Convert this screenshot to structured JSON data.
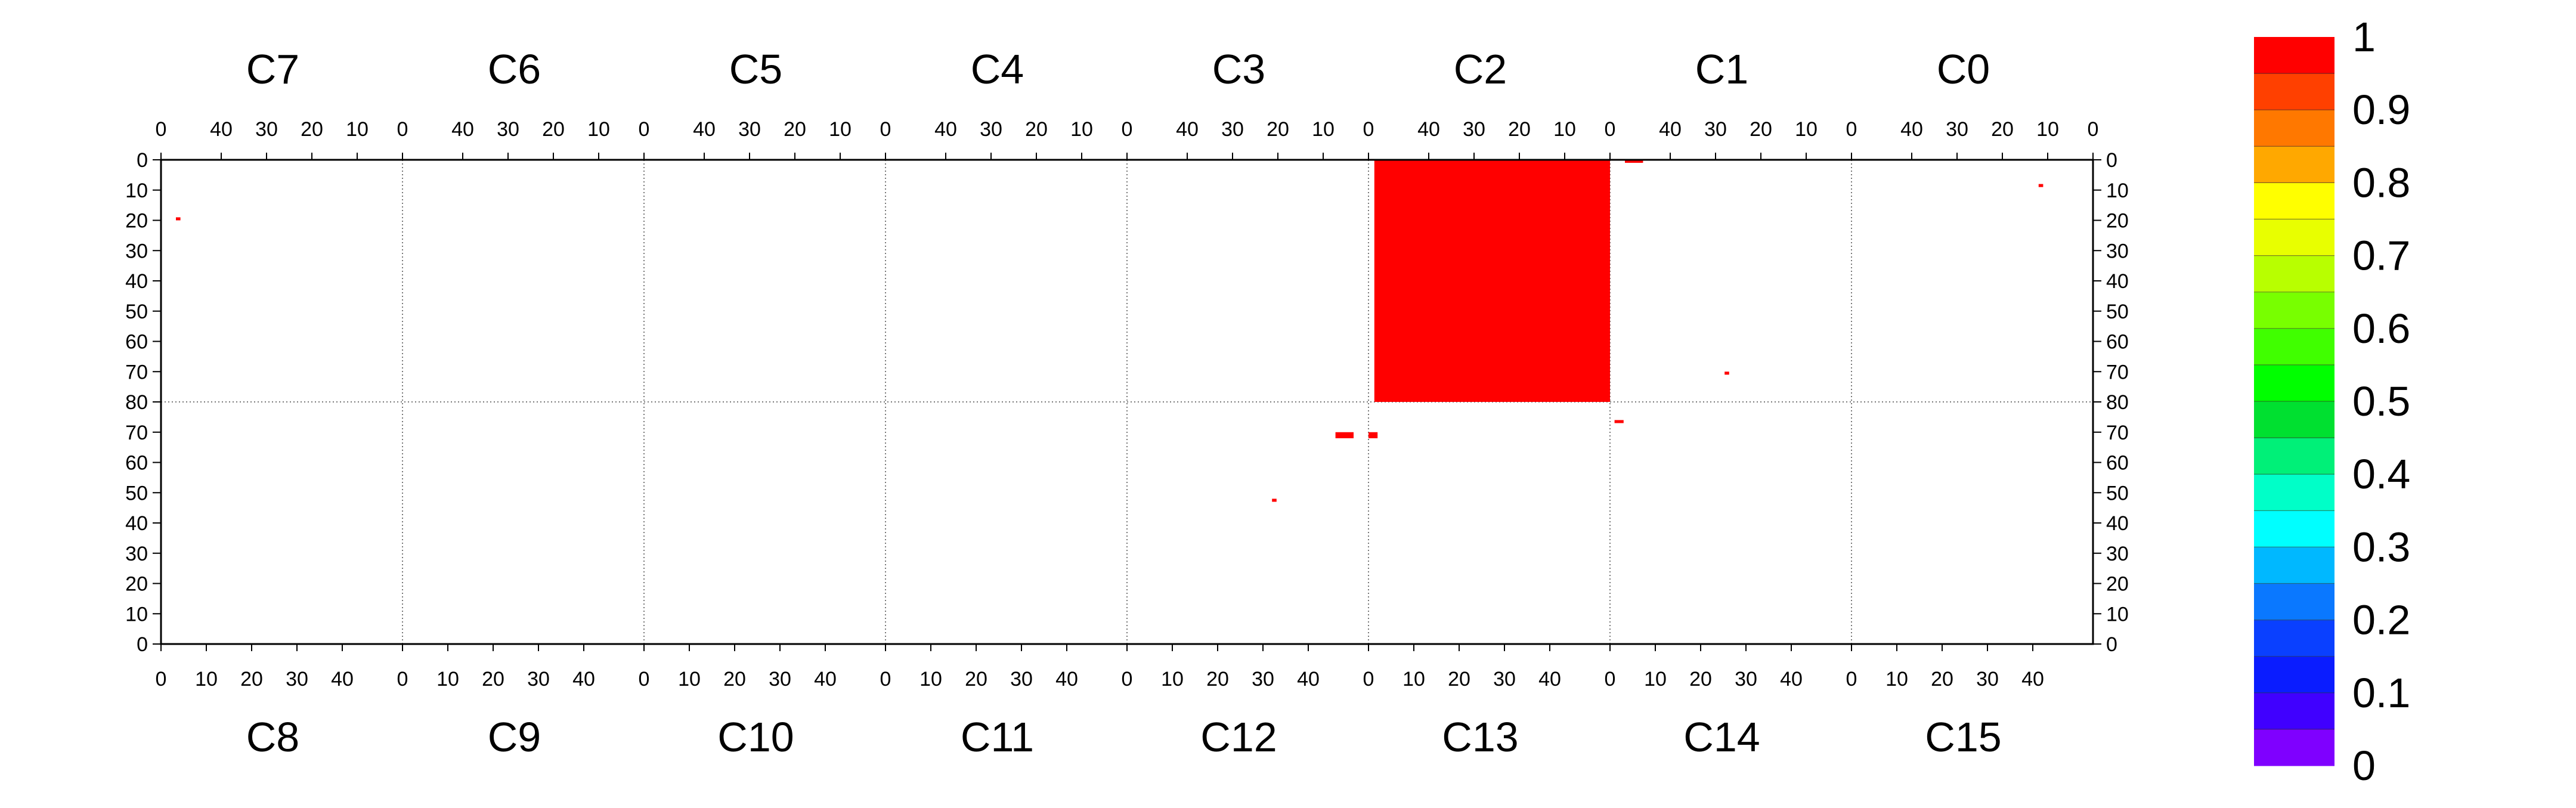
{
  "chart_data": {
    "type": "heatmap",
    "xlim": [
      0,
      50
    ],
    "grid": true,
    "top_row": {
      "chips": [
        "C7",
        "C6",
        "C5",
        "C4",
        "C3",
        "C2",
        "C1",
        "C0"
      ],
      "x_ticks": [
        [
          "40",
          "30",
          "20",
          "10",
          "0"
        ],
        [
          "40",
          "30",
          "20",
          "10",
          "0"
        ],
        [
          "40",
          "30",
          "20",
          "10",
          "0"
        ],
        [
          "40",
          "30",
          "20",
          "10",
          "0"
        ],
        [
          "40",
          "30",
          "20",
          "10",
          "0"
        ],
        [
          "40",
          "30",
          "20",
          "10",
          "0"
        ],
        [
          "40",
          "30",
          "20",
          "10",
          "0"
        ],
        [
          "40",
          "30",
          "20",
          "10",
          "0"
        ]
      ],
      "x_ticks_leading": "0",
      "y_ticks": [
        "0",
        "10",
        "20",
        "30",
        "40",
        "50",
        "60",
        "70",
        "80"
      ]
    },
    "bottom_row": {
      "chips": [
        "C8",
        "C9",
        "C10",
        "C11",
        "C12",
        "C13",
        "C14",
        "C15"
      ],
      "x_ticks": [
        [
          "0",
          "10",
          "20",
          "30",
          "40"
        ],
        [
          "0",
          "10",
          "20",
          "30",
          "40"
        ],
        [
          "0",
          "10",
          "20",
          "30",
          "40"
        ],
        [
          "0",
          "10",
          "20",
          "30",
          "40"
        ],
        [
          "0",
          "10",
          "20",
          "30",
          "40"
        ],
        [
          "0",
          "10",
          "20",
          "30",
          "40"
        ],
        [
          "0",
          "10",
          "20",
          "30",
          "40"
        ],
        [
          "0",
          "10",
          "20",
          "30",
          "40"
        ]
      ],
      "y_ticks": [
        "80",
        "70",
        "60",
        "50",
        "40",
        "30",
        "20",
        "10",
        "0"
      ]
    },
    "cells": [
      {
        "chip": "C2",
        "col": [
          0,
          52
        ],
        "row": [
          0,
          80
        ],
        "value": 1.0
      },
      {
        "chip": "C1",
        "col": [
          46,
          50
        ],
        "row": [
          0,
          1
        ],
        "value": 1.0
      },
      {
        "chip": "C7",
        "col": [
          49,
          50
        ],
        "row": [
          19,
          20
        ],
        "value": 1.0
      },
      {
        "chip": "C0",
        "col": [
          11,
          12
        ],
        "row": [
          8,
          9
        ],
        "value": 1.0
      },
      {
        "chip": "C1",
        "col": [
          27,
          28
        ],
        "row": [
          70,
          71
        ],
        "value": 1.0
      },
      {
        "chip": "C14",
        "col": [
          1,
          3
        ],
        "row": [
          73,
          74
        ],
        "value": 1.0
      },
      {
        "chip": "C12",
        "col": [
          46,
          50
        ],
        "row": [
          68,
          70
        ],
        "value": 1.0
      },
      {
        "chip": "C13",
        "col": [
          0,
          2
        ],
        "row": [
          68,
          70
        ],
        "value": 1.0
      },
      {
        "chip": "C12",
        "col": [
          32,
          33
        ],
        "row": [
          47,
          48
        ],
        "value": 1.0
      }
    ],
    "colorbar": {
      "ticks": [
        "1",
        "0.9",
        "0.8",
        "0.7",
        "0.6",
        "0.5",
        "0.4",
        "0.3",
        "0.2",
        "0.1",
        "0"
      ],
      "range": [
        0,
        1
      ],
      "colors": [
        "#7f00ff",
        "#4000ff",
        "#0a1cff",
        "#0a40ff",
        "#0a78ff",
        "#00b8ff",
        "#00ffff",
        "#00ffc8",
        "#00f078",
        "#00e030",
        "#00ff00",
        "#40ff00",
        "#78ff00",
        "#b8ff00",
        "#e8ff00",
        "#ffff00",
        "#ffa800",
        "#ff7800",
        "#ff4000",
        "#ff0000"
      ]
    }
  }
}
